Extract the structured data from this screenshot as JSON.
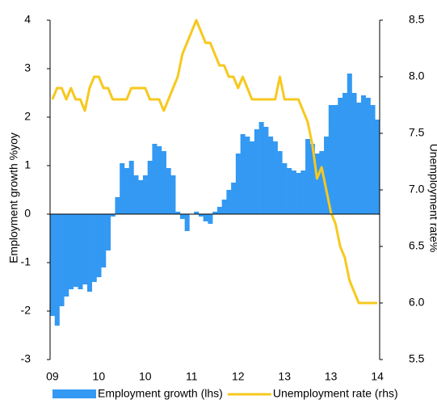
{
  "chart_data": {
    "type": "bar_line",
    "y_label": "Employment growth %yoy",
    "y2_label": "Unemployment rate%",
    "categories": [
      "09",
      null,
      null,
      null,
      null,
      null,
      null,
      null,
      null,
      null,
      "10",
      null,
      null,
      null,
      null,
      null,
      null,
      null,
      null,
      null,
      "10",
      null,
      null,
      null,
      null,
      null,
      null,
      null,
      null,
      null,
      "11",
      null,
      null,
      null,
      null,
      null,
      null,
      null,
      null,
      null,
      "12",
      null,
      null,
      null,
      null,
      null,
      null,
      null,
      null,
      null,
      "13",
      null,
      null,
      null,
      null,
      null,
      null,
      null,
      null,
      null,
      "13",
      null,
      null,
      null,
      null,
      null,
      null,
      null,
      null,
      null,
      "14"
    ],
    "ylim": [
      -3,
      4
    ],
    "yticks": [
      -3,
      -2,
      -1,
      0,
      1,
      2,
      3,
      4
    ],
    "y2lim": [
      5.5,
      8.5
    ],
    "y2ticks": [
      5.5,
      {
        "value": 6,
        "label": "6.0"
      },
      6.5,
      {
        "value": 7,
        "label": "7.0"
      },
      7.5,
      {
        "value": 8,
        "label": "8.0"
      },
      8.5
    ],
    "legend": "bottom",
    "series": [
      {
        "name": "Employment growth (lhs)",
        "type": "bar",
        "color": "#3399f3",
        "values": [
          -2.1,
          -2.3,
          -1.9,
          -1.7,
          -1.55,
          -1.5,
          -1.55,
          -1.45,
          -1.6,
          -1.4,
          -1.3,
          -1.1,
          -0.75,
          -0.05,
          0.35,
          1.05,
          0.95,
          1.1,
          0.8,
          0.7,
          0.8,
          1.1,
          1.45,
          1.4,
          1.3,
          0.95,
          0.8,
          0.05,
          -0.1,
          -0.35,
          0.0,
          0.05,
          -0.05,
          -0.15,
          -0.2,
          0.05,
          0.15,
          0.3,
          0.5,
          0.65,
          1.25,
          1.65,
          1.6,
          1.5,
          1.75,
          1.9,
          1.8,
          1.6,
          1.5,
          1.3,
          1.05,
          0.95,
          0.9,
          0.85,
          0.9,
          1.55,
          1.45,
          1.25,
          1.3,
          1.6,
          2.25,
          2.25,
          2.4,
          2.5,
          2.9,
          2.5,
          2.3,
          2.45,
          2.4,
          2.25,
          1.95
        ]
      },
      {
        "name": "Unemployment rate (rhs)",
        "type": "line",
        "axis": "y2",
        "color": "#f7c81e",
        "values": [
          7.8,
          7.9,
          7.9,
          7.8,
          7.9,
          7.8,
          7.8,
          7.7,
          7.9,
          8.0,
          8.0,
          7.9,
          7.9,
          7.8,
          7.8,
          7.8,
          7.8,
          7.9,
          7.9,
          7.9,
          7.9,
          7.8,
          7.8,
          7.8,
          7.7,
          7.8,
          7.9,
          8.0,
          8.2,
          8.3,
          8.4,
          8.5,
          8.4,
          8.3,
          8.3,
          8.2,
          8.1,
          8.1,
          8.0,
          8.0,
          7.9,
          8.0,
          7.9,
          7.8,
          7.8,
          7.8,
          7.8,
          7.8,
          7.8,
          8.0,
          7.8,
          7.8,
          7.8,
          7.8,
          7.7,
          7.6,
          7.4,
          7.1,
          7.2,
          7.0,
          6.8,
          6.7,
          6.5,
          6.4,
          6.2,
          6.1,
          6.0,
          6.0,
          6.0,
          6.0,
          6.0
        ]
      }
    ]
  }
}
